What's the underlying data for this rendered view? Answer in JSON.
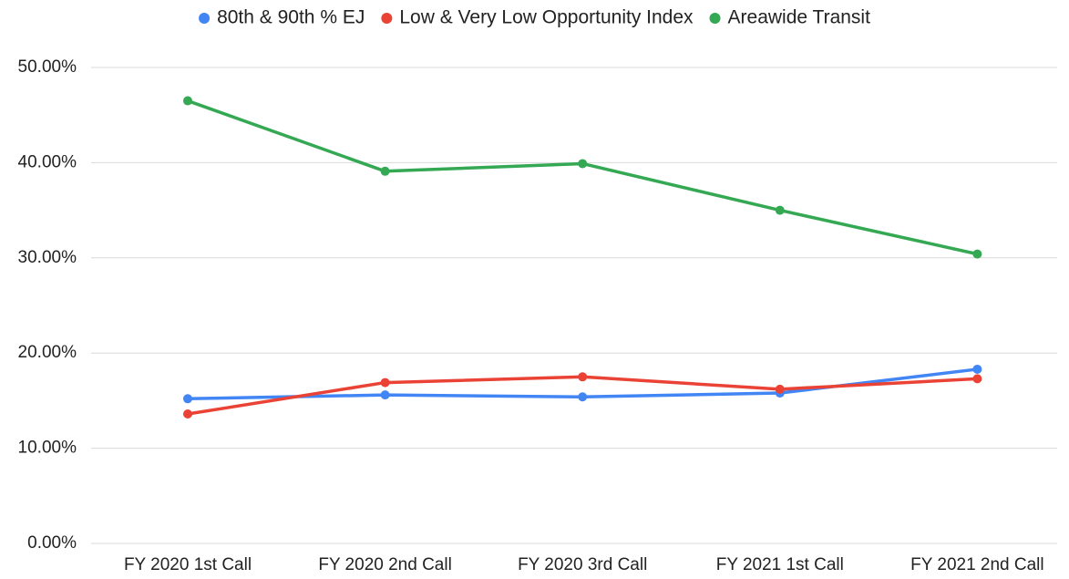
{
  "chart_data": {
    "type": "line",
    "categories": [
      "FY 2020 1st Call",
      "FY 2020 2nd Call",
      "FY 2020 3rd Call",
      "FY 2021 1st Call",
      "FY 2021 2nd Call"
    ],
    "series": [
      {
        "name": "80th & 90th % EJ",
        "color": "#4285f4",
        "values": [
          15.2,
          15.6,
          15.4,
          15.8,
          18.3
        ]
      },
      {
        "name": "Low & Very Low Opportunity Index",
        "color": "#ea4335",
        "values": [
          13.6,
          16.9,
          17.5,
          16.2,
          17.3
        ]
      },
      {
        "name": "Areawide Transit",
        "color": "#34a853",
        "values": [
          46.5,
          39.1,
          39.9,
          35.0,
          30.4
        ]
      }
    ],
    "ylim": [
      0,
      50
    ],
    "yticks": [
      {
        "value": 0,
        "label": "0.00%"
      },
      {
        "value": 10,
        "label": "10.00%"
      },
      {
        "value": 20,
        "label": "20.00%"
      },
      {
        "value": 30,
        "label": "30.00%"
      },
      {
        "value": 40,
        "label": "40.00%"
      },
      {
        "value": 50,
        "label": "50.00%"
      }
    ],
    "grid": true,
    "legend": "top"
  }
}
